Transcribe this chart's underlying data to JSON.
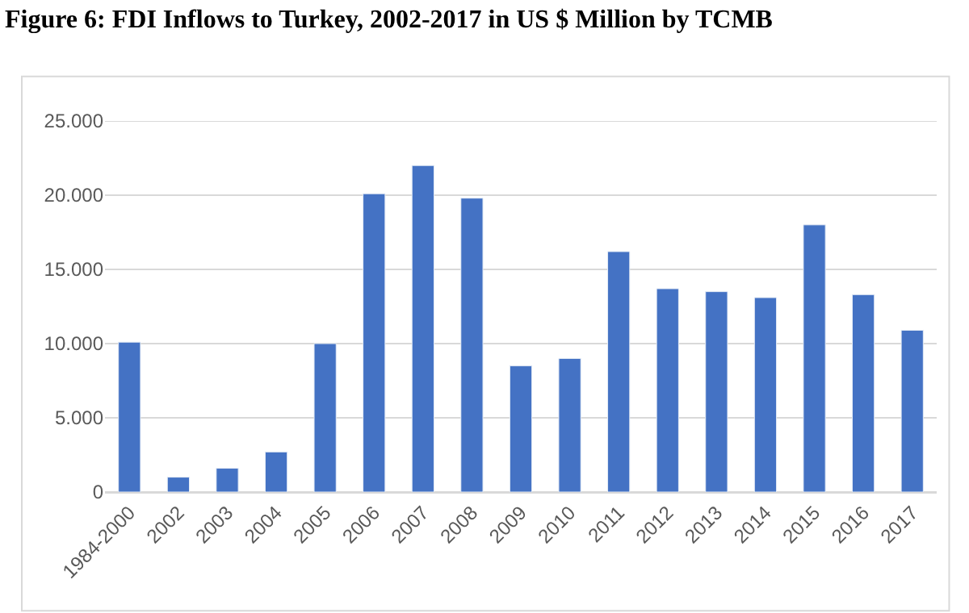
{
  "chart_data": {
    "type": "bar",
    "title": "Figure 6: FDI Inflows to Turkey, 2002-2017 in US $ Million by TCMB",
    "categories": [
      "1984-2000",
      "2002",
      "2003",
      "2004",
      "2005",
      "2006",
      "2007",
      "2008",
      "2009",
      "2010",
      "2011",
      "2012",
      "2013",
      "2014",
      "2015",
      "2016",
      "2017"
    ],
    "values": [
      10100,
      1000,
      1600,
      2700,
      10000,
      20100,
      22000,
      19800,
      8500,
      9000,
      16200,
      13700,
      13500,
      13100,
      18000,
      13300,
      10900
    ],
    "color": "#4472c4",
    "ylim": [
      0,
      25000
    ],
    "yticks": [
      {
        "value": 0,
        "label": "0"
      },
      {
        "value": 5000,
        "label": "5.000"
      },
      {
        "value": 10000,
        "label": "10.000"
      },
      {
        "value": 15000,
        "label": "15.000"
      },
      {
        "value": 20000,
        "label": "20.000"
      },
      {
        "value": 25000,
        "label": "25.000"
      }
    ],
    "grid": "y"
  }
}
